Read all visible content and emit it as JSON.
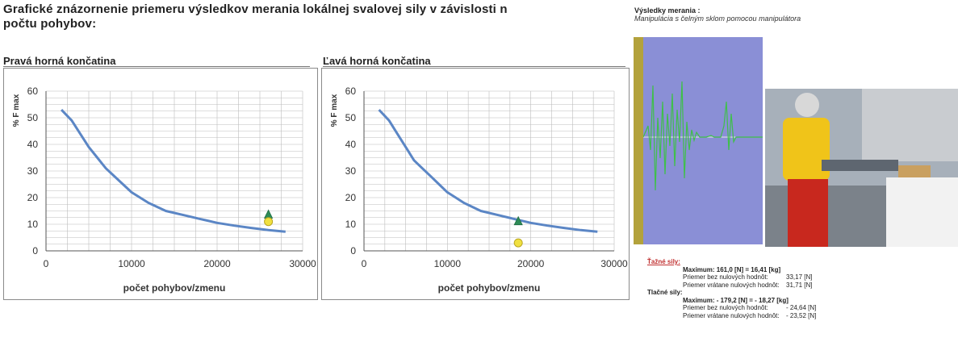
{
  "heading": {
    "line1": "Grafické znázornenie priemeru výsledkov merania lokálnej svalovej sily v závislosti n",
    "line2": "počtu pohybov:"
  },
  "chart_data": [
    {
      "type": "line",
      "title": "Pravá horná končatina",
      "xlabel": "počet pohybov/zmenu",
      "ylabel": "% F max",
      "xlim": [
        0,
        30000
      ],
      "ylim": [
        0,
        60
      ],
      "xticks": [
        "0",
        "10000",
        "20000",
        "30000"
      ],
      "yticks": [
        "0",
        "10",
        "20",
        "30",
        "40",
        "50",
        "60"
      ],
      "grid": true,
      "x": [
        1800,
        3000,
        4000,
        5000,
        6000,
        7000,
        8000,
        9000,
        10000,
        11000,
        12000,
        14000,
        16000,
        18000,
        20000,
        22000,
        24000,
        26000,
        28000
      ],
      "y": [
        53,
        49,
        44,
        39,
        35,
        31,
        28,
        25,
        22,
        20,
        18,
        15,
        13.5,
        12,
        10.5,
        9.5,
        8.6,
        7.8,
        7.2
      ],
      "markers": [
        {
          "shape": "triangle",
          "x": 26000,
          "y": 13.5,
          "color": "#2e8b57"
        },
        {
          "shape": "circle",
          "x": 26000,
          "y": 11,
          "color": "#f0e040"
        }
      ]
    },
    {
      "type": "line",
      "title": "Ľavá horná končatina",
      "xlabel": "počet pohybov/zmenu",
      "ylabel": "% F max",
      "xlim": [
        0,
        30000
      ],
      "ylim": [
        0,
        60
      ],
      "xticks": [
        "0",
        "10000",
        "20000",
        "30000"
      ],
      "yticks": [
        "0",
        "10",
        "20",
        "30",
        "40",
        "50",
        "60"
      ],
      "grid": true,
      "x": [
        1800,
        3000,
        4000,
        5000,
        6000,
        7000,
        8000,
        9000,
        10000,
        11000,
        12000,
        14000,
        16000,
        18000,
        20000,
        22000,
        24000,
        26000,
        28000
      ],
      "y": [
        53,
        49,
        44,
        39,
        34,
        31,
        28,
        25,
        22,
        20,
        18,
        15,
        13.5,
        12,
        10.5,
        9.5,
        8.6,
        7.8,
        7.2
      ],
      "markers": [
        {
          "shape": "triangle",
          "x": 18500,
          "y": 11,
          "color": "#2e8b57"
        },
        {
          "shape": "circle",
          "x": 18500,
          "y": 3,
          "color": "#f0e040"
        }
      ]
    }
  ],
  "measurement": {
    "title": "Výsledky merania :",
    "subtitle": "Manipulácia s čelným sklom pomocou manipulátora",
    "pull_label": "Ťažné sily:",
    "pull_max": "Maximum:  161,0 [N] = 16,41 [kg]",
    "pull_avg_nonzero_label": "Priemer bez nulových hodnôt:",
    "pull_avg_nonzero_value": "33,17 [N]",
    "pull_avg_all_label": "Priemer  vrátane nulových hodnôt:",
    "pull_avg_all_value": "31,71 [N]",
    "push_label": "Tlačné sily:",
    "push_max": "Maximum:  - 179,2 [N] =  - 18,27 [kg]",
    "push_avg_nonzero_label": "Priemer bez nulových hodnôt:",
    "push_avg_nonzero_value": "- 24,64 [N]",
    "push_avg_all_label": "Priemer  vrátane nulových hodnôt:",
    "push_avg_all_value": "- 23,52 [N]"
  },
  "colors": {
    "curve": "#5b86c5",
    "grid": "#bdbdbd",
    "signal_bg": "#8a8fd6",
    "signal_line": "#3fbf4a",
    "pull_label": "#c03030"
  }
}
